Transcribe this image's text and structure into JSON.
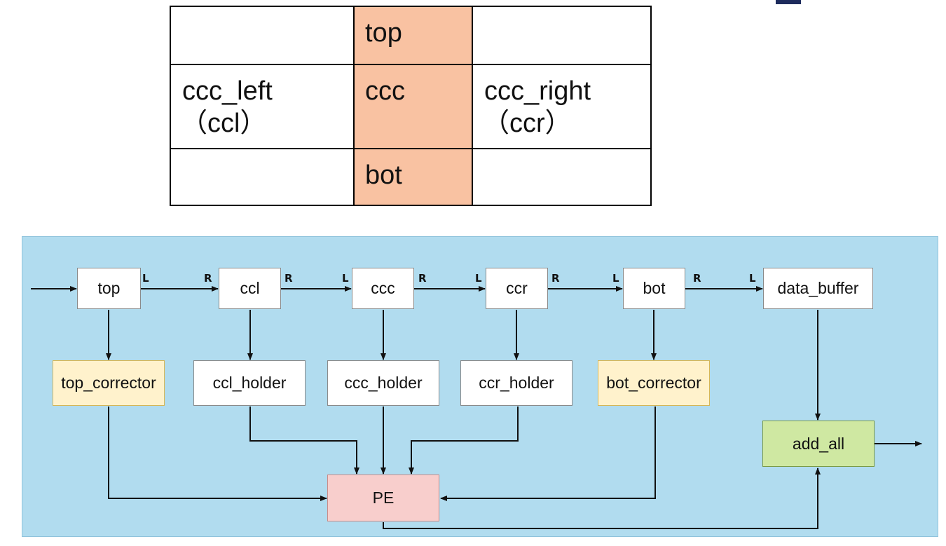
{
  "grid": {
    "rows": [
      [
        {
          "text": "",
          "text2": "",
          "highlight": false
        },
        {
          "text": "top",
          "text2": "",
          "highlight": true
        },
        {
          "text": "",
          "text2": "",
          "highlight": false
        }
      ],
      [
        {
          "text": "ccc_left",
          "text2": "（ccl）",
          "highlight": false
        },
        {
          "text": "ccc",
          "text2": "",
          "highlight": true
        },
        {
          "text": "ccc_right",
          "text2": "（ccr）",
          "highlight": false
        }
      ],
      [
        {
          "text": "",
          "text2": "",
          "highlight": false
        },
        {
          "text": "bot",
          "text2": "",
          "highlight": true
        },
        {
          "text": "",
          "text2": "",
          "highlight": false
        }
      ]
    ],
    "highlight_color": "#f9c2a2"
  },
  "diagram": {
    "background_color": "#b1dcef",
    "nodes": {
      "top": "top",
      "ccl": "ccl",
      "ccc": "ccc",
      "ccr": "ccr",
      "bot": "bot",
      "data_buffer": "data_buffer",
      "top_corrector": "top_corrector",
      "ccl_holder": "ccl_holder",
      "ccc_holder": "ccc_holder",
      "ccr_holder": "ccr_holder",
      "bot_corrector": "bot_corrector",
      "add_all": "add_all",
      "pe": "PE"
    },
    "ports": {
      "top_out": "L",
      "ccl_in": "R",
      "ccl_out": "R",
      "ccc_in": "L",
      "ccc_out": "R",
      "ccr_in": "L",
      "ccr_out": "R",
      "bot_in": "L",
      "bot_out": "R",
      "data_buffer_in": "L"
    },
    "colors": {
      "corrector": "#fff2cc",
      "add_all": "#cfe8a2",
      "pe": "#f8cecc",
      "accent": "#1d2b5c"
    }
  }
}
